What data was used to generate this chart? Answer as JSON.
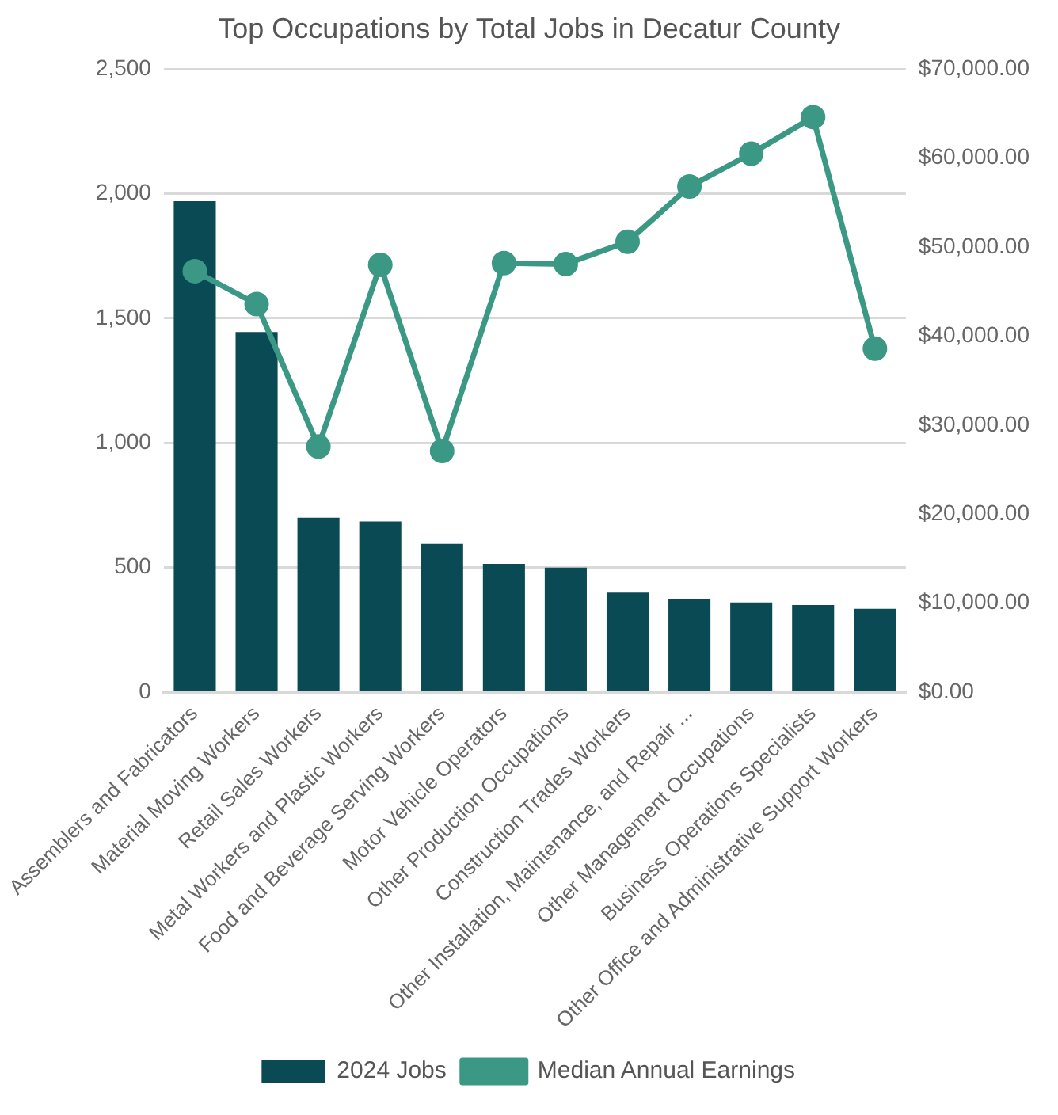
{
  "chart_data": {
    "type": "bar",
    "title": "Top Occupations by Total Jobs in Decatur County",
    "categories": [
      "Assemblers and Fabricators",
      "Material Moving Workers",
      "Retail Sales Workers",
      "Metal Workers and Plastic Workers",
      "Food and Beverage Serving Workers",
      "Motor Vehicle Operators",
      "Other Production Occupations",
      "Construction Trades Workers",
      "Other Installation, Maintenance, and Repair ...",
      "Other Management Occupations",
      "Business Operations Specialists",
      "Other Office and Administrative Support Workers"
    ],
    "series": [
      {
        "name": "2024 Jobs",
        "color": "#0a4a55",
        "values": [
          1970,
          1445,
          700,
          685,
          595,
          515,
          500,
          400,
          375,
          360,
          350,
          335
        ]
      },
      {
        "name": "Median Annual Earnings",
        "type": "line",
        "axis": "y2",
        "color": "#3a9885",
        "marker": "circle",
        "values": [
          47300,
          43600,
          27600,
          48000,
          27100,
          48200,
          48100,
          50600,
          56800,
          60500,
          64600,
          38600
        ]
      }
    ],
    "ylim": [
      0,
      2500
    ],
    "yticks": [
      {
        "value": 0,
        "label": "0"
      },
      {
        "value": 500,
        "label": "500"
      },
      {
        "value": 1000,
        "label": "1,000"
      },
      {
        "value": 1500,
        "label": "1,500"
      },
      {
        "value": 2000,
        "label": "2,000"
      },
      {
        "value": 2500,
        "label": "2,500"
      }
    ],
    "y2lim": [
      0,
      70000
    ],
    "y2ticks": [
      {
        "value": 0,
        "label": "$0.00"
      },
      {
        "value": 10000,
        "label": "$10,000.00"
      },
      {
        "value": 20000,
        "label": "$20,000.00"
      },
      {
        "value": 30000,
        "label": "$30,000.00"
      },
      {
        "value": 40000,
        "label": "$40,000.00"
      },
      {
        "value": 50000,
        "label": "$50,000.00"
      },
      {
        "value": 60000,
        "label": "$60,000.00"
      },
      {
        "value": 70000,
        "label": "$70,000.00"
      }
    ],
    "grid": "y",
    "legend": "bottom"
  }
}
